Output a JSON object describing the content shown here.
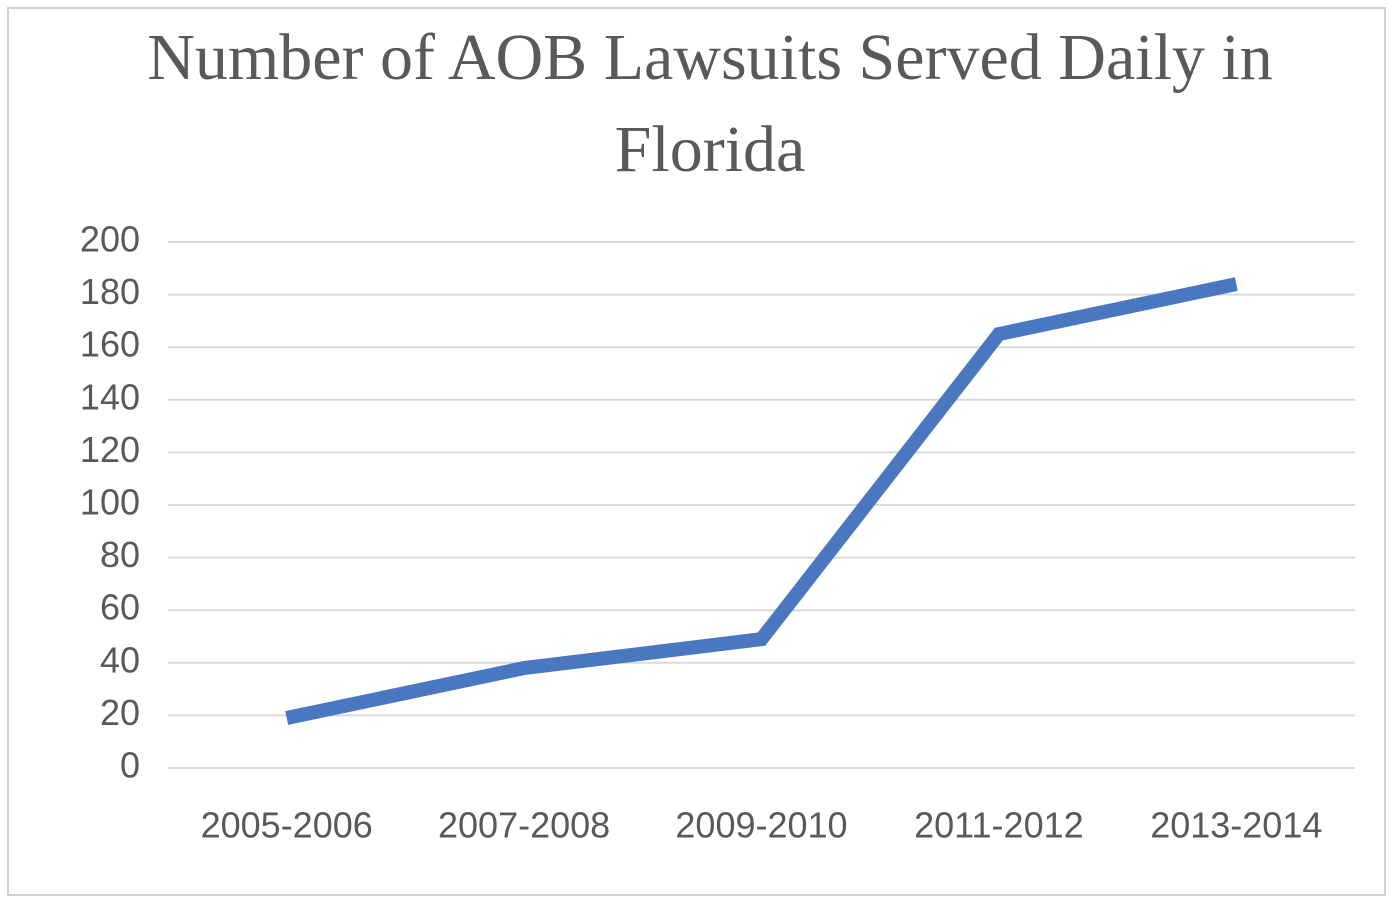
{
  "chart_data": {
    "type": "line",
    "title": "Number of AOB Lawsuits Served Daily in Florida",
    "categories": [
      "2005-2006",
      "2007-2008",
      "2009-2010",
      "2011-2012",
      "2013-2014"
    ],
    "values": [
      19,
      38,
      49,
      165,
      184
    ],
    "color": "#4a78c0",
    "ylim": [
      0,
      200
    ],
    "yticks": [
      0,
      20,
      40,
      60,
      80,
      100,
      120,
      140,
      160,
      180,
      200
    ],
    "grid": true
  }
}
